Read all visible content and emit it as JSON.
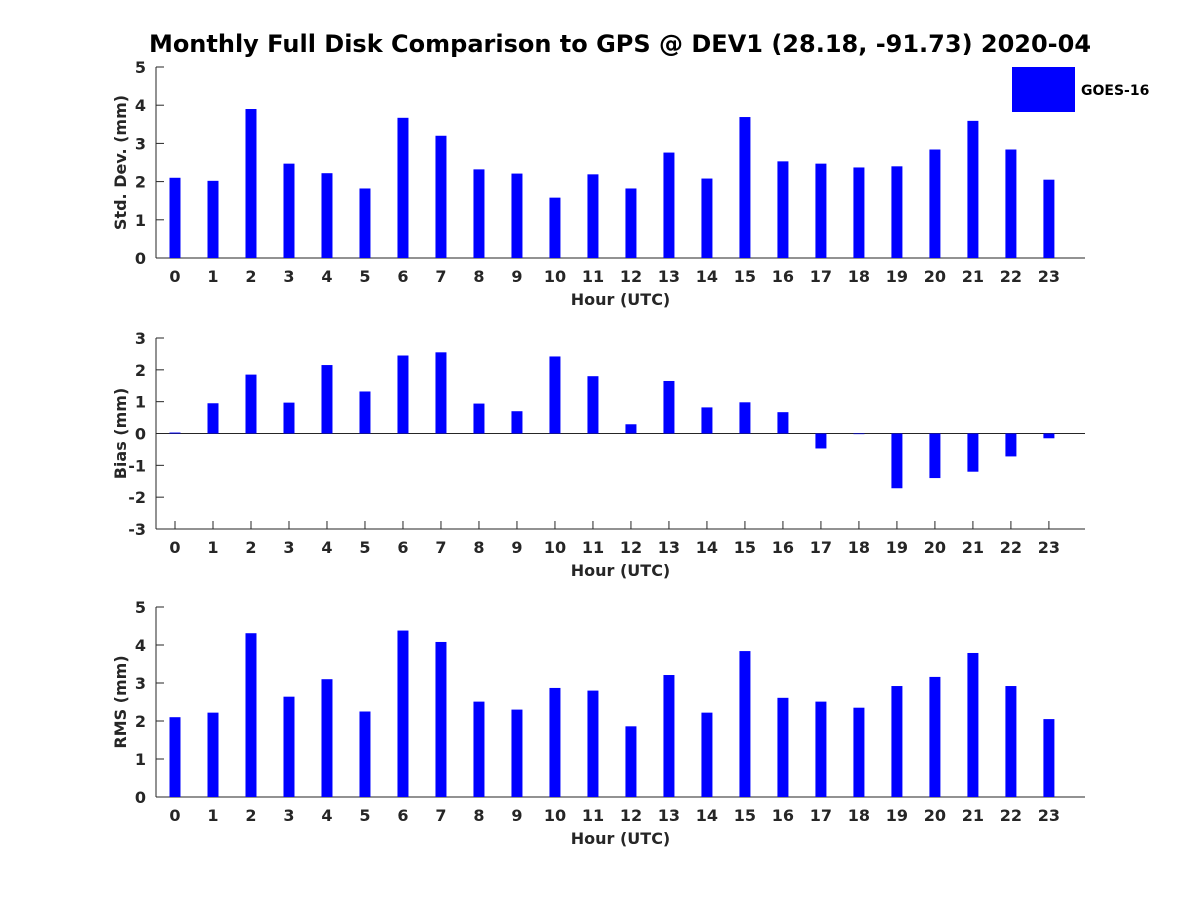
{
  "chart_data": {
    "type": "bar",
    "title": "Monthly Full Disk Comparison to GPS @ DEV1 (28.18, -91.73) 2020-04",
    "legend": {
      "label": "GOES-16",
      "color": "#0000ff",
      "placement": "top-right"
    },
    "categories": [
      "0",
      "1",
      "2",
      "3",
      "4",
      "5",
      "6",
      "7",
      "8",
      "9",
      "10",
      "11",
      "12",
      "13",
      "14",
      "15",
      "16",
      "17",
      "18",
      "19",
      "20",
      "21",
      "22",
      "23"
    ],
    "panels": [
      {
        "xlabel": "Hour (UTC)",
        "ylabel": "Std. Dev. (mm)",
        "ylim": [
          0,
          5
        ],
        "yticks": [
          0,
          1,
          2,
          3,
          4,
          5
        ],
        "series": [
          {
            "name": "GOES-16",
            "values": [
              2.1,
              2.02,
              3.9,
              2.47,
              2.22,
              1.82,
              3.67,
              3.2,
              2.32,
              2.21,
              1.58,
              2.19,
              1.82,
              2.76,
              2.08,
              3.69,
              2.53,
              2.47,
              2.37,
              2.4,
              2.84,
              3.59,
              2.84,
              2.05
            ]
          }
        ]
      },
      {
        "xlabel": "Hour (UTC)",
        "ylabel": "Bias (mm)",
        "ylim": [
          -3,
          3
        ],
        "yticks": [
          -3,
          -2,
          -1,
          0,
          1,
          2,
          3
        ],
        "series": [
          {
            "name": "GOES-16",
            "values": [
              0.03,
              0.95,
              1.85,
              0.97,
              2.15,
              1.32,
              2.45,
              2.55,
              0.94,
              0.7,
              2.42,
              1.8,
              0.29,
              1.65,
              0.82,
              0.98,
              0.67,
              -0.47,
              -0.02,
              -1.72,
              -1.4,
              -1.2,
              -0.72,
              -0.15
            ]
          }
        ]
      },
      {
        "xlabel": "Hour (UTC)",
        "ylabel": "RMS (mm)",
        "ylim": [
          0,
          5
        ],
        "yticks": [
          0,
          1,
          2,
          3,
          4,
          5
        ],
        "series": [
          {
            "name": "GOES-16",
            "values": [
              2.1,
              2.22,
              4.31,
              2.64,
              3.1,
              2.25,
              4.38,
              4.08,
              2.51,
              2.3,
              2.87,
              2.8,
              1.86,
              3.21,
              2.22,
              3.84,
              2.61,
              2.51,
              2.35,
              2.92,
              3.16,
              3.79,
              2.92,
              2.05
            ]
          }
        ]
      }
    ]
  }
}
